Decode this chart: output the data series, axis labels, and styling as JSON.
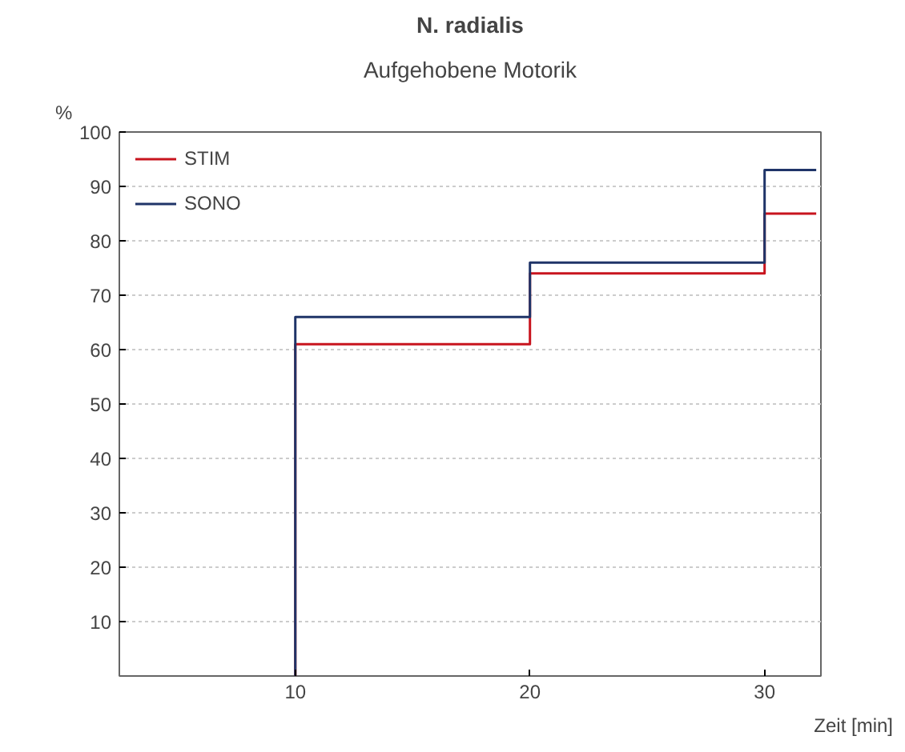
{
  "chart_data": {
    "type": "step",
    "title": "N. radialis",
    "subtitle": "Aufgehobene Motorik",
    "xlabel": "Zeit [min]",
    "ylabel": "%",
    "xlim": [
      2.5,
      32.4
    ],
    "xticks": [
      10,
      20,
      30
    ],
    "ylim": [
      0,
      100
    ],
    "yticks": [
      10,
      20,
      30,
      40,
      50,
      60,
      70,
      80,
      90,
      100
    ],
    "grid": "y",
    "legend": "top left",
    "series": [
      {
        "name": "STIM",
        "color": "#c8141e",
        "x": [
          10,
          10,
          20,
          30,
          32.2
        ],
        "values": [
          0,
          61,
          74,
          85,
          85
        ]
      },
      {
        "name": "SONO",
        "color": "#1f3468",
        "x": [
          10,
          10,
          20,
          30,
          32.2
        ],
        "values": [
          0,
          66,
          76,
          93,
          93
        ]
      }
    ]
  }
}
